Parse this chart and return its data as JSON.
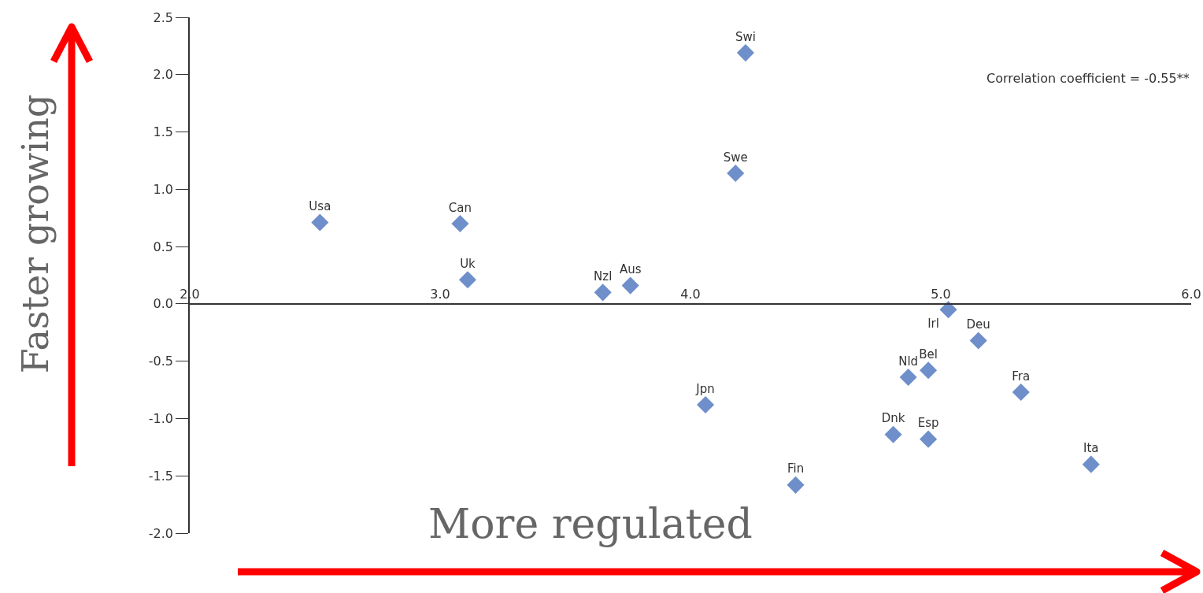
{
  "chart_data": {
    "type": "scatter",
    "xlabel": "More regulated",
    "ylabel": "Faster growing",
    "annotations": [
      "Correlation coefficient = -0.55**"
    ],
    "x": [
      2.52,
      3.08,
      3.11,
      3.65,
      3.76,
      4.22,
      4.18,
      4.06,
      4.42,
      4.81,
      4.95,
      4.87,
      4.95,
      5.03,
      5.15,
      5.32,
      5.6
    ],
    "series": [
      {
        "color": "#6f8fcb",
        "values": [
          0.71,
          0.7,
          0.21,
          0.1,
          0.16,
          2.19,
          1.14,
          -0.88,
          -1.58,
          -1.14,
          -1.18,
          -0.64,
          -0.58,
          -0.05,
          -0.32,
          -0.77,
          -1.4
        ],
        "value_labels": [
          "Usa",
          "Can",
          "Uk",
          "Nzl",
          "Aus",
          "Swi",
          "Swe",
          "Jpn",
          "Fin",
          "Dnk",
          "Esp",
          "Nld",
          "Bel",
          "Irl",
          "Deu",
          "Fra",
          "Ita"
        ]
      }
    ],
    "xlim": [
      2.0,
      6.0
    ],
    "xticks": [
      {
        "value": 2,
        "label": "2.0"
      },
      {
        "value": 3,
        "label": "3.0"
      },
      {
        "value": 4,
        "label": "4.0"
      },
      {
        "value": 5,
        "label": "5.0"
      },
      {
        "value": 6,
        "label": "6.0"
      }
    ],
    "ylim": [
      -2.0,
      2.5
    ],
    "yticks": [
      {
        "value": -2,
        "label": "-2.0"
      },
      -1.5,
      {
        "value": -1,
        "label": "-1.0"
      },
      -0.5,
      {
        "value": 0,
        "label": "0.0"
      },
      0.5,
      {
        "value": 1,
        "label": "1.0"
      },
      1.5,
      {
        "value": 2,
        "label": "2.0"
      },
      2.5
    ],
    "marker": "diamond",
    "grid": false
  }
}
